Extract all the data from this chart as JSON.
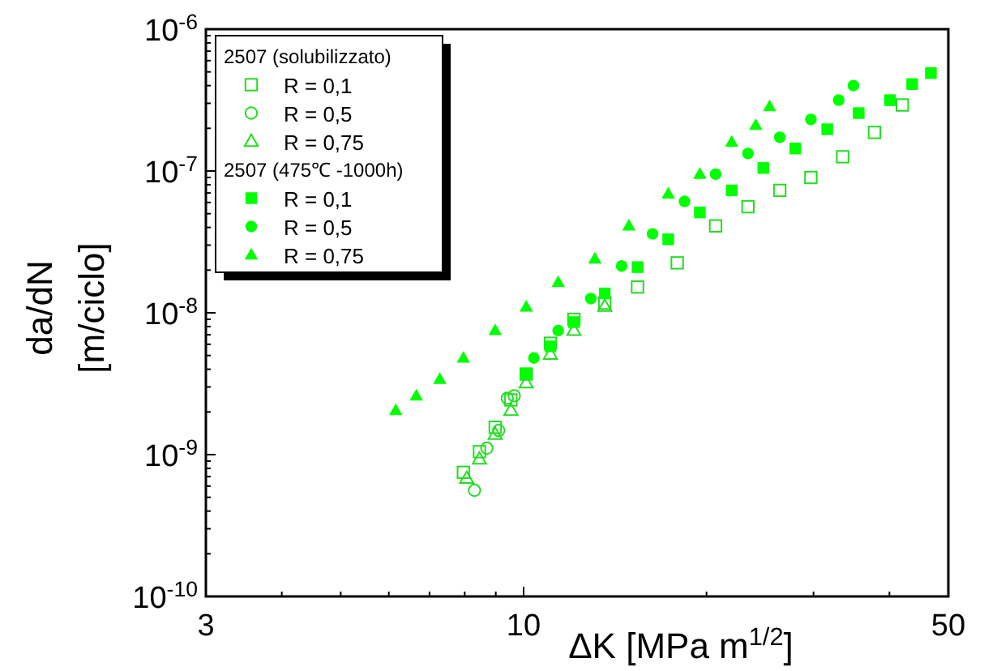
{
  "chart_data": {
    "type": "scatter",
    "xlabel": "ΔK [MPa m$^{1/2}$]",
    "ylabel": "da/dN\n[m/ciclo]",
    "log": "xy",
    "grid": false,
    "legend": "top left",
    "xlim": [
      3,
      50
    ],
    "ylim": [
      1e-10,
      1e-06
    ],
    "xticks": [
      3,
      {
        "value": 4,
        "label": null
      },
      {
        "value": 5,
        "label": null
      },
      {
        "value": 6,
        "label": null
      },
      {
        "value": 7,
        "label": null
      },
      {
        "value": 8,
        "label": null
      },
      {
        "value": 9,
        "label": null
      },
      10,
      {
        "value": 20,
        "label": null
      },
      {
        "value": 30,
        "label": null
      },
      {
        "value": 40,
        "label": null
      },
      50
    ],
    "yticks": [
      {
        "value": 1e-10,
        "label": "10$^{-10}$"
      },
      {
        "value": 2e-10,
        "label": null
      },
      {
        "value": 3e-10,
        "label": null
      },
      {
        "value": 4e-10,
        "label": null
      },
      {
        "value": 5e-10,
        "label": null
      },
      {
        "value": 6e-10,
        "label": null
      },
      {
        "value": 7e-10,
        "label": null
      },
      {
        "value": 8e-10,
        "label": null
      },
      {
        "value": 9e-10,
        "label": null
      },
      {
        "value": 1e-09,
        "label": "10$^{-9}$"
      },
      {
        "value": 2e-09,
        "label": null
      },
      {
        "value": 3e-09,
        "label": null
      },
      {
        "value": 4e-09,
        "label": null
      },
      {
        "value": 5e-09,
        "label": null
      },
      {
        "value": 6e-09,
        "label": null
      },
      {
        "value": 7e-09,
        "label": null
      },
      {
        "value": 8e-09,
        "label": null
      },
      {
        "value": 9e-09,
        "label": null
      },
      {
        "value": 1e-08,
        "label": "10$^{-8}$"
      },
      {
        "value": 2e-08,
        "label": null
      },
      {
        "value": 3e-08,
        "label": null
      },
      {
        "value": 4e-08,
        "label": null
      },
      {
        "value": 5e-08,
        "label": null
      },
      {
        "value": 6e-08,
        "label": null
      },
      {
        "value": 7e-08,
        "label": null
      },
      {
        "value": 8e-08,
        "label": null
      },
      {
        "value": 9e-08,
        "label": null
      },
      {
        "value": 1e-07,
        "label": "10$^{-7}$"
      },
      {
        "value": 2e-07,
        "label": null
      },
      {
        "value": 3e-07,
        "label": null
      },
      {
        "value": 4e-07,
        "label": null
      },
      {
        "value": 5e-07,
        "label": null
      },
      {
        "value": 6e-07,
        "label": null
      },
      {
        "value": 7e-07,
        "label": null
      },
      {
        "value": 8e-07,
        "label": null
      },
      {
        "value": 9e-07,
        "label": null
      },
      {
        "value": 1e-06,
        "label": "10$^{-6}$"
      }
    ],
    "annotations": [
      "2507 (solubilizzato)",
      "2507 (475℃ -1000h)"
    ],
    "series": [
      {
        "name": "R = 0,1",
        "marker": "square",
        "color": "#22dd22",
        "x": [
          7.96,
          8.46,
          8.98,
          9.53,
          10.1,
          11.07,
          12.1,
          13.6,
          15.4,
          17.9,
          20.7,
          23.4,
          26.4,
          29.7,
          33.5,
          37.8,
          42.0
        ],
        "values": [
          7.5e-10,
          1.05e-09,
          1.56e-09,
          2.43e-09,
          3.7e-09,
          6.1e-09,
          9e-09,
          1.17e-08,
          1.52e-08,
          2.25e-08,
          4.1e-08,
          5.6e-08,
          7.3e-08,
          9e-08,
          1.26e-07,
          1.87e-07,
          2.92e-07
        ]
      },
      {
        "name": "R = 0,5",
        "marker": "circle",
        "color": "#22dd22",
        "x": [
          8.3,
          8.7,
          9.1,
          9.4,
          9.65
        ],
        "values": [
          5.6e-10,
          1.11e-09,
          1.48e-09,
          2.5e-09,
          2.6e-09
        ]
      },
      {
        "name": "R = 0,75",
        "marker": "triangle",
        "color": "#22dd22",
        "x": [
          8.06,
          8.46,
          8.98,
          9.53,
          10.1,
          11.07,
          12.1,
          13.6
        ],
        "values": [
          6.8e-10,
          9.3e-10,
          1.39e-09,
          2.05e-09,
          3.2e-09,
          5.1e-09,
          7.5e-09,
          1.11e-08
        ]
      },
      {
        "name": "R = 0,1",
        "marker": "square",
        "color": "#00ff00",
        "x": [
          10.1,
          11.07,
          12.1,
          13.6,
          15.4,
          17.3,
          19.5,
          22.0,
          24.8,
          28.0,
          31.6,
          35.6,
          40.1,
          43.6,
          46.8
        ],
        "values": [
          3.7e-09,
          5.8e-09,
          8.6e-09,
          1.37e-08,
          2.1e-08,
          3.3e-08,
          5.1e-08,
          7.3e-08,
          1.05e-07,
          1.44e-07,
          1.97e-07,
          2.56e-07,
          3.16e-07,
          4.1e-07,
          4.9e-07
        ]
      },
      {
        "name": "R = 0,5",
        "marker": "circle",
        "color": "#00ff00",
        "x": [
          10.4,
          11.4,
          12.9,
          14.5,
          16.3,
          18.4,
          20.7,
          23.4,
          26.4,
          29.7,
          33.0,
          34.9
        ],
        "values": [
          4.8e-09,
          7.5e-09,
          1.26e-08,
          2.14e-08,
          3.6e-08,
          6.1e-08,
          9.5e-08,
          1.33e-07,
          1.73e-07,
          2.31e-07,
          3.16e-07,
          4e-07
        ]
      },
      {
        "name": "R = 0,75",
        "marker": "triangle",
        "color": "#00ff00",
        "x": [
          6.16,
          6.66,
          7.28,
          7.96,
          8.98,
          10.1,
          11.4,
          13.1,
          14.9,
          17.3,
          19.5,
          22.0,
          24.1,
          25.4
        ],
        "values": [
          2.05e-09,
          2.6e-09,
          3.4e-09,
          4.8e-09,
          7.5e-09,
          1.1e-08,
          1.64e-08,
          2.4e-08,
          4.1e-08,
          6.9e-08,
          9.5e-08,
          1.6e-07,
          2.1e-07,
          2.85e-07
        ]
      }
    ]
  }
}
